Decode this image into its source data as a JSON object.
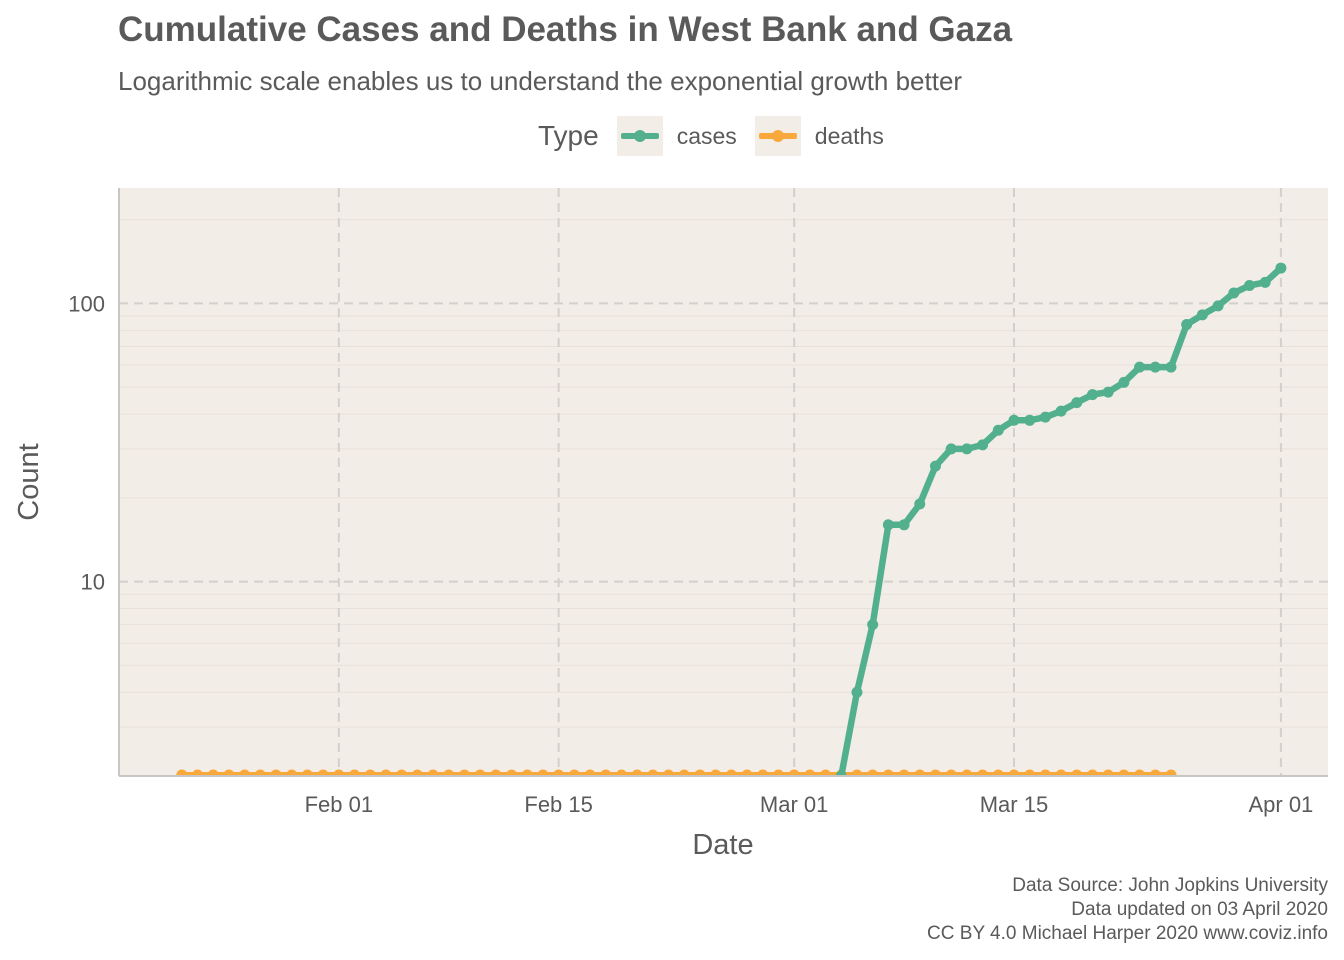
{
  "chart_data": {
    "type": "line",
    "title": "Cumulative Cases and Deaths in West Bank and Gaza",
    "subtitle": "Logarithmic scale enables us to understand the exponential growth better",
    "xlabel": "Date",
    "ylabel": "Count",
    "y_scale": "log10",
    "ylim": [
      2,
      260
    ],
    "xlim": [
      "2020-01-18",
      "2020-04-04"
    ],
    "x_ticks": [
      {
        "date": "2020-02-01",
        "label": "Feb 01"
      },
      {
        "date": "2020-02-15",
        "label": "Feb 15"
      },
      {
        "date": "2020-03-01",
        "label": "Mar 01"
      },
      {
        "date": "2020-03-15",
        "label": "Mar 15"
      },
      {
        "date": "2020-04-01",
        "label": "Apr 01"
      }
    ],
    "y_ticks": [
      {
        "value": 10,
        "label": "10"
      },
      {
        "value": 100,
        "label": "100"
      }
    ],
    "grid": true,
    "legend": {
      "title": "Type",
      "position": "top"
    },
    "series": [
      {
        "name": "cases",
        "color": "#52b08e",
        "points": [
          [
            "2020-03-04",
            2
          ],
          [
            "2020-03-05",
            4
          ],
          [
            "2020-03-06",
            7
          ],
          [
            "2020-03-07",
            16
          ],
          [
            "2020-03-08",
            16
          ],
          [
            "2020-03-09",
            19
          ],
          [
            "2020-03-10",
            26
          ],
          [
            "2020-03-11",
            30
          ],
          [
            "2020-03-12",
            30
          ],
          [
            "2020-03-13",
            31
          ],
          [
            "2020-03-14",
            35
          ],
          [
            "2020-03-15",
            38
          ],
          [
            "2020-03-16",
            38
          ],
          [
            "2020-03-17",
            39
          ],
          [
            "2020-03-18",
            41
          ],
          [
            "2020-03-19",
            44
          ],
          [
            "2020-03-20",
            47
          ],
          [
            "2020-03-21",
            48
          ],
          [
            "2020-03-22",
            52
          ],
          [
            "2020-03-23",
            59
          ],
          [
            "2020-03-24",
            59
          ],
          [
            "2020-03-25",
            59
          ],
          [
            "2020-03-26",
            84
          ],
          [
            "2020-03-27",
            91
          ],
          [
            "2020-03-28",
            98
          ],
          [
            "2020-03-29",
            109
          ],
          [
            "2020-03-30",
            116
          ],
          [
            "2020-03-31",
            119
          ],
          [
            "2020-04-01",
            134
          ]
        ]
      },
      {
        "name": "deaths",
        "color": "#f9a93b",
        "baseline_value": 2,
        "start_date": "2020-01-22",
        "end_date": "2020-03-25"
      }
    ],
    "caption": [
      "Data Source: John Jopkins University",
      "Data updated on 03 April 2020",
      "CC BY 4.0 Michael Harper 2020 www.coviz.info"
    ]
  }
}
